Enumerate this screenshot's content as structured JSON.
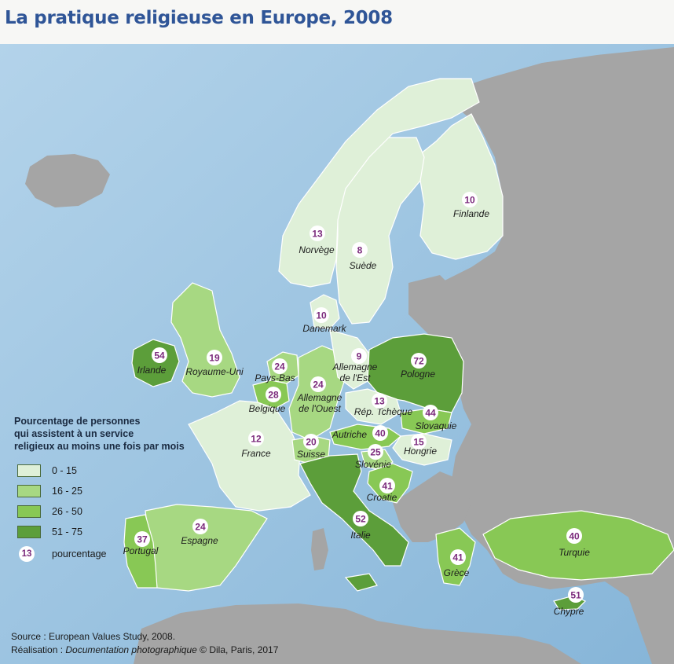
{
  "title": "La pratique religieuse en Europe, 2008",
  "colors": {
    "sea_light": "#b3d3ea",
    "sea_dark": "#86b5d8",
    "non_data_land": "#a5a5a5",
    "class_0_15": "#dff0d8",
    "class_16_25": "#a7d882",
    "class_26_50": "#88c855",
    "class_51_75": "#5c9e3a",
    "bubble_text": "#7b2a7c"
  },
  "legend": {
    "title": "Pourcentage de personnes\nqui assistent à un service\nreligieux au moins une fois par mois",
    "classes": [
      "0 - 15",
      "16 - 25",
      "26 - 50",
      "51 - 75"
    ],
    "bubble_example_value": "13",
    "bubble_example_label": "pourcentage"
  },
  "countries": [
    {
      "name": "Finlande",
      "value": "10",
      "class": 0
    },
    {
      "name": "Norvège",
      "value": "13",
      "class": 0
    },
    {
      "name": "Suède",
      "value": "8",
      "class": 0
    },
    {
      "name": "Danemark",
      "value": "10",
      "class": 0
    },
    {
      "name": "Irlande",
      "value": "54",
      "class": 3
    },
    {
      "name": "Royaume-Uni",
      "value": "19",
      "class": 1
    },
    {
      "name": "Pays-Bas",
      "value": "24",
      "class": 1
    },
    {
      "name": "Belgique",
      "value": "28",
      "class": 2
    },
    {
      "name": "Allemagne de l'Ouest",
      "value": "24",
      "class": 1
    },
    {
      "name": "Allemagne de l'Est",
      "value": "9",
      "class": 0
    },
    {
      "name": "Pologne",
      "value": "72",
      "class": 3
    },
    {
      "name": "Rép. Tchèque",
      "value": "13",
      "class": 0
    },
    {
      "name": "Slovaquie",
      "value": "44",
      "class": 2
    },
    {
      "name": "France",
      "value": "12",
      "class": 0
    },
    {
      "name": "Suisse",
      "value": "20",
      "class": 1
    },
    {
      "name": "Autriche",
      "value": "40",
      "class": 2
    },
    {
      "name": "Hongrie",
      "value": "15",
      "class": 0
    },
    {
      "name": "Slovénie",
      "value": "25",
      "class": 1
    },
    {
      "name": "Croatie",
      "value": "41",
      "class": 2
    },
    {
      "name": "Italie",
      "value": "52",
      "class": 3
    },
    {
      "name": "Portugal",
      "value": "37",
      "class": 2
    },
    {
      "name": "Espagne",
      "value": "24",
      "class": 1
    },
    {
      "name": "Grèce",
      "value": "41",
      "class": 2
    },
    {
      "name": "Turquie",
      "value": "40",
      "class": 2
    },
    {
      "name": "Chypre",
      "value": "51",
      "class": 3
    }
  ],
  "source_prefix": "Source : European Values Study, 2008.",
  "realisation_prefix": "Réalisation : ",
  "realisation_italic": "Documentation photographique",
  "realisation_suffix": " © Dila, Paris, 2017"
}
